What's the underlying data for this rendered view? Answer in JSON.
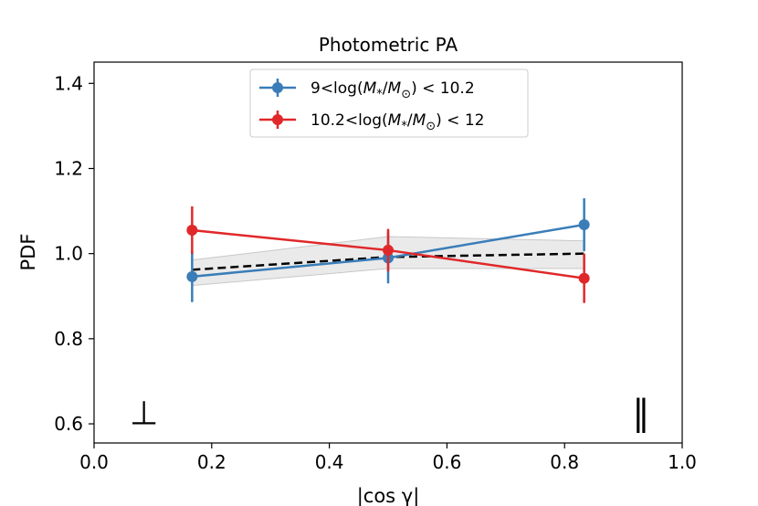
{
  "chart_data": {
    "type": "line",
    "title": "Photometric PA",
    "xlabel": "|cos γ|",
    "ylabel": "PDF",
    "xlim": [
      0.0,
      1.0
    ],
    "ylim": [
      0.555,
      1.45
    ],
    "xticks": [
      0.0,
      0.2,
      0.4,
      0.6,
      0.8,
      1.0
    ],
    "xtick_labels": [
      "0.0",
      "0.2",
      "0.4",
      "0.6",
      "0.8",
      "1.0"
    ],
    "yticks": [
      0.6,
      0.8,
      1.0,
      1.2,
      1.4
    ],
    "ytick_labels": [
      "0.6",
      "0.8",
      "1.0",
      "1.2",
      "1.4"
    ],
    "grid": false,
    "legend_position": "top-center",
    "series": [
      {
        "name": "9<log(M*/M⊙) < 10.2",
        "legend_parts": [
          "9<log(",
          "M",
          "*",
          "/",
          "M",
          "⊙",
          ") < 10.2"
        ],
        "color": "#3a7db8",
        "x": [
          0.1667,
          0.5,
          0.8333
        ],
        "y": [
          0.946,
          0.99,
          1.068
        ],
        "yerr": [
          0.06,
          0.06,
          0.062
        ]
      },
      {
        "name": "10.2<log(M*/M⊙) < 12",
        "legend_parts": [
          "10.2<log(",
          "M",
          "*",
          "/",
          "M",
          "⊙",
          ") < 12"
        ],
        "color": "#e0282a",
        "x": [
          0.1667,
          0.5,
          0.8333
        ],
        "y": [
          1.055,
          1.008,
          0.942
        ],
        "yerr": [
          0.056,
          0.05,
          0.058
        ]
      }
    ],
    "reference": {
      "color": "#000000",
      "style": "dashed",
      "x": [
        0.1667,
        0.5,
        0.8333
      ],
      "y": [
        0.962,
        0.992,
        1.0
      ],
      "band_lower": [
        0.925,
        0.965,
        0.965
      ],
      "band_upper": [
        0.985,
        1.04,
        1.03
      ],
      "band_color": "#d9d9d9"
    },
    "annotations": [
      {
        "text": "⊥",
        "x": 0.085,
        "y": 0.62
      },
      {
        "text": "‖",
        "x": 0.93,
        "y": 0.62
      }
    ]
  }
}
